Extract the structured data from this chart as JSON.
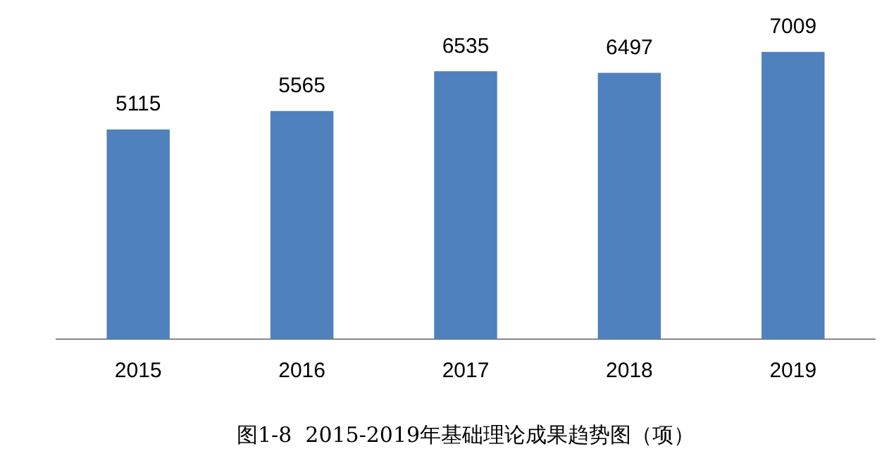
{
  "chart_data": {
    "type": "bar",
    "title": "图1-8  2015-2019年基础理论成果趋势图（项）",
    "categories": [
      "2015",
      "2016",
      "2017",
      "2018",
      "2019"
    ],
    "values": [
      5115,
      5565,
      6535,
      6497,
      7009
    ],
    "color": "#4f81bd",
    "data_labels": true,
    "grid": false,
    "legend": false,
    "tick_labels": "x"
  }
}
